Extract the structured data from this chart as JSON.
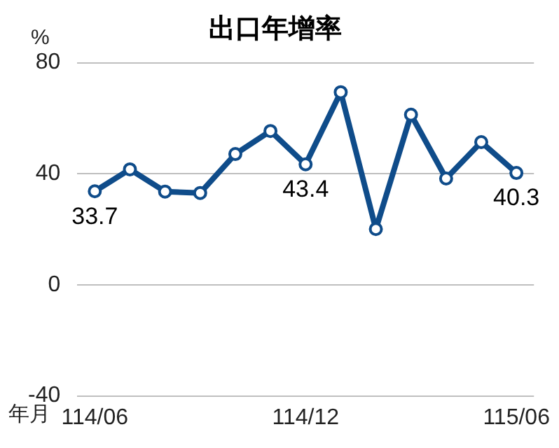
{
  "chart_data": {
    "type": "line",
    "title": "出口年增率",
    "ylabel": "%",
    "xlabel": "年月",
    "categories": [
      "114/06",
      null,
      null,
      null,
      null,
      null,
      "114/12",
      null,
      null,
      null,
      null,
      null,
      "115/06"
    ],
    "series": [
      {
        "color": "#0f4c8a",
        "values": [
          33.7,
          41.6,
          33.6,
          33.1,
          47.1,
          55.4,
          43.4,
          69.4,
          20.1,
          61.3,
          38.3,
          51.4,
          40.3
        ],
        "value_labels": [
          "33.7",
          null,
          null,
          null,
          null,
          null,
          "43.4",
          null,
          null,
          null,
          null,
          null,
          "40.3"
        ]
      }
    ],
    "ylim": [
      -40,
      80
    ],
    "yticks": [
      -40,
      0,
      40,
      80
    ],
    "grid": "y",
    "legend": false,
    "marker": "circle",
    "line_style": "solid"
  }
}
